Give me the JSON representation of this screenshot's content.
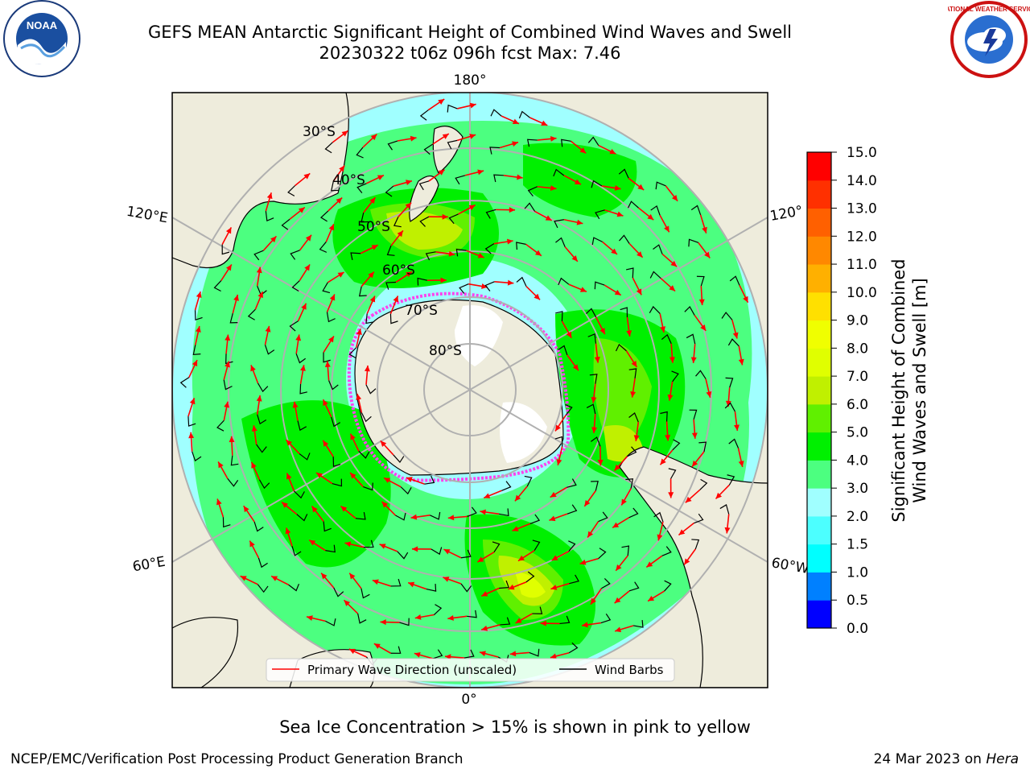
{
  "header": {
    "title_line1": "GEFS MEAN Antarctic Significant Height of Combined Wind Waves and Swell",
    "title_line2": "20230322 t06z 096h fcst   Max: 7.46"
  },
  "logos": {
    "noaa_text": "NOAA",
    "nws_text": "NATIONAL WEATHER SERVICE"
  },
  "map": {
    "longitude_labels": [
      "180°",
      "120°E",
      "120°",
      "60°E",
      "60°W",
      "0°"
    ],
    "latitude_labels": [
      "30°S",
      "40°S",
      "50°S",
      "60°S",
      "70°S",
      "80°S"
    ],
    "colors": {
      "land": "#eeecdc",
      "ice_edge": "#ff44ee",
      "grid": "#b0b0b0",
      "arrow": "#ff0000",
      "barb": "#000000"
    }
  },
  "legend": {
    "items": [
      {
        "label": "Primary Wave Direction (unscaled)",
        "color": "#ff0000"
      },
      {
        "label": "Wind Barbs",
        "color": "#000000"
      }
    ]
  },
  "colorbar": {
    "label_line1": "Significant Height of Combined",
    "label_line2": "Wind Waves and Swell [m]",
    "ticks": [
      "0.0",
      "0.5",
      "1.0",
      "1.5",
      "2.0",
      "3.0",
      "4.0",
      "5.0",
      "6.0",
      "7.0",
      "8.0",
      "9.0",
      "10.0",
      "11.0",
      "12.0",
      "13.0",
      "14.0",
      "15.0"
    ],
    "bins": [
      {
        "from": 0.0,
        "to": 0.5,
        "color": "#0000ff"
      },
      {
        "from": 0.5,
        "to": 1.0,
        "color": "#0080ff"
      },
      {
        "from": 1.0,
        "to": 1.5,
        "color": "#00ffff"
      },
      {
        "from": 1.5,
        "to": 2.0,
        "color": "#4cffff"
      },
      {
        "from": 2.0,
        "to": 3.0,
        "color": "#a0ffff"
      },
      {
        "from": 3.0,
        "to": 4.0,
        "color": "#4cff80"
      },
      {
        "from": 4.0,
        "to": 5.0,
        "color": "#00f000"
      },
      {
        "from": 5.0,
        "to": 6.0,
        "color": "#60f000"
      },
      {
        "from": 6.0,
        "to": 7.0,
        "color": "#c0f000"
      },
      {
        "from": 7.0,
        "to": 8.0,
        "color": "#e0ff00"
      },
      {
        "from": 8.0,
        "to": 9.0,
        "color": "#f0ff00"
      },
      {
        "from": 9.0,
        "to": 10.0,
        "color": "#ffe000"
      },
      {
        "from": 10.0,
        "to": 11.0,
        "color": "#ffb000"
      },
      {
        "from": 11.0,
        "to": 12.0,
        "color": "#ff8800"
      },
      {
        "from": 12.0,
        "to": 13.0,
        "color": "#ff6000"
      },
      {
        "from": 13.0,
        "to": 14.0,
        "color": "#ff3000"
      },
      {
        "from": 14.0,
        "to": 15.0,
        "color": "#ff0000"
      }
    ]
  },
  "caption": "Sea Ice Concentration > 15% is shown in pink to yellow",
  "footer": {
    "left": "NCEP/EMC/Verification Post Processing Product Generation Branch",
    "right_date": "24 Mar 2023 on",
    "right_machine": "Hera"
  }
}
